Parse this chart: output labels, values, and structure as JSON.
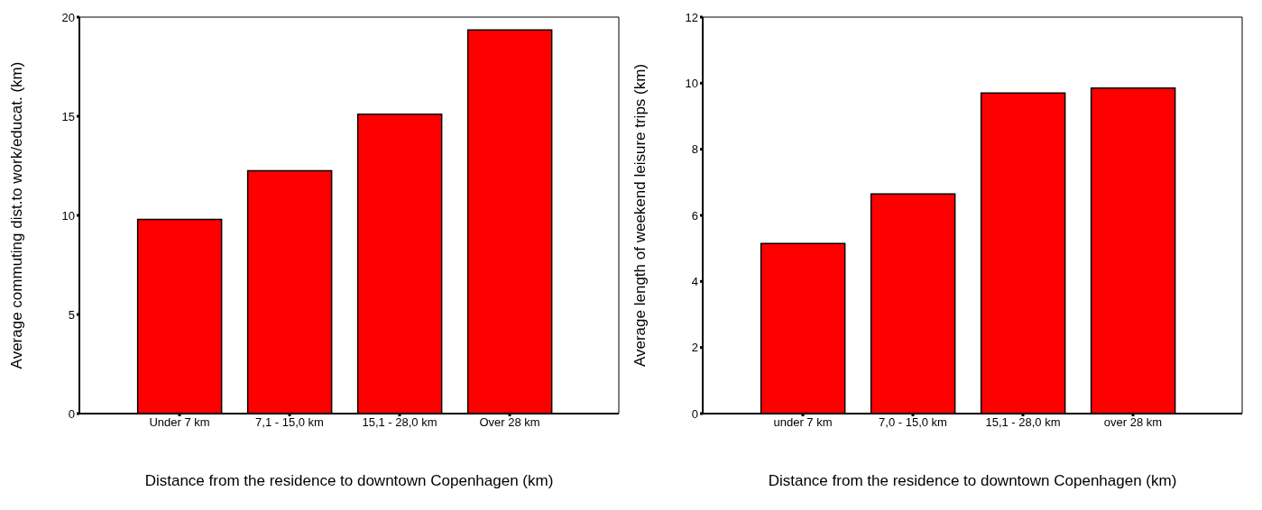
{
  "chart_data": [
    {
      "type": "bar",
      "xlabel": "Distance from the residence to downtown Copenhagen (km)",
      "ylabel": "Average commuting dist.to work/educat. (km)",
      "categories": [
        "Under 7 km",
        "7,1 - 15,0 km",
        "15,1 - 28,0 km",
        "Over 28 km"
      ],
      "values": [
        9.8,
        12.25,
        15.1,
        19.35
      ],
      "color": "#ff0000",
      "ylim": [
        0,
        20
      ],
      "yticks": [
        0,
        5,
        10,
        15,
        20
      ],
      "grid": false,
      "legend": false
    },
    {
      "type": "bar",
      "xlabel": "Distance from the residence to downtown Copenhagen (km)",
      "ylabel": "Average length of weekend leisure trips (km)",
      "categories": [
        "under 7 km",
        "7,0 - 15,0 km",
        "15,1 - 28,0 km",
        "over 28 km"
      ],
      "values": [
        5.15,
        6.65,
        9.7,
        9.85
      ],
      "color": "#ff0000",
      "ylim": [
        0,
        12
      ],
      "yticks": [
        0,
        2,
        4,
        6,
        8,
        10,
        12
      ],
      "grid": false,
      "legend": false
    }
  ]
}
